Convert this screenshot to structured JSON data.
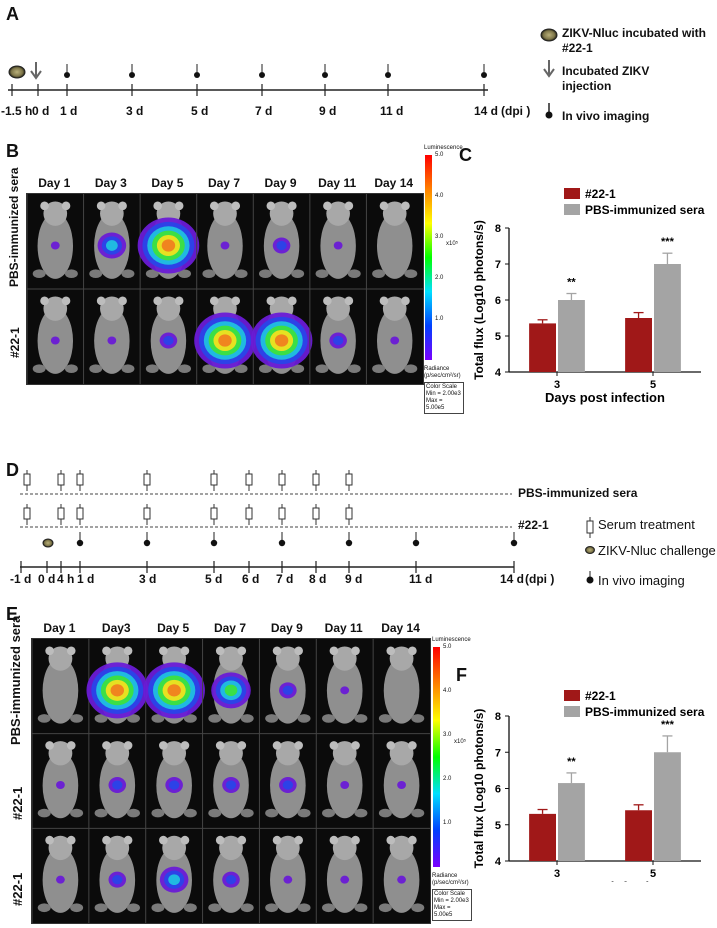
{
  "panels": {
    "A": {
      "letter": "A",
      "ticks": [
        "-1.5 h",
        "0 d",
        "1 d",
        "3 d",
        "5 d",
        "7 d",
        "9 d",
        "11 d",
        "14 d",
        "(dpi )"
      ],
      "legend": {
        "incubated": "ZIKV-Nluc incubated with #22-1",
        "injection": "Incubated  ZIKV injection",
        "imaging": "In vivo imaging"
      }
    },
    "B": {
      "letter": "B",
      "days": [
        "Day 1",
        "Day  3",
        "Day 5",
        "Day 7",
        "Day  9",
        "Day 11",
        "Day 14"
      ],
      "rows": [
        "PBS-immunized sera",
        "#22-1"
      ],
      "scale": {
        "title": "Luminescence",
        "ticks": [
          "5.0",
          "4.0",
          "3.0",
          "2.0",
          "1.0"
        ],
        "exp": "x10⁵",
        "radiance": "Radiance (p/sec/cm²/sr)",
        "color_scale": "Color Scale",
        "min": "Min = 2.00e3",
        "max": "Max = 5.00e5"
      }
    },
    "C": {
      "letter": "C"
    },
    "D": {
      "letter": "D",
      "ticks": [
        "-1 d",
        "0 d",
        "4 h",
        "1 d",
        "3 d",
        "5 d",
        "6 d",
        "7 d",
        "8 d",
        "9 d",
        "11 d",
        "14 d",
        "(dpi )"
      ],
      "rows": [
        "PBS-immunized sera",
        "#22-1"
      ],
      "legend": {
        "serum": "Serum treatment",
        "challenge": "ZIKV-Nluc challenge",
        "imaging": "In vivo imaging"
      }
    },
    "E": {
      "letter": "E",
      "days": [
        "Day 1",
        "Day3",
        "Day 5",
        "Day 7",
        "Day  9",
        "Day 11",
        "Day 14"
      ],
      "rows": [
        "PBS-immunized sera",
        "#22-1",
        "#22-1"
      ],
      "scale": {
        "title": "Luminescence",
        "ticks": [
          "5.0",
          "4.0",
          "3.0",
          "2.0",
          "1.0"
        ],
        "exp": "x10⁵",
        "radiance": "Radiance (p/sec/cm²/sr)",
        "color_scale": "Color Scale",
        "min": "Min = 2.00e3",
        "max": "Max = 5.00e5"
      }
    },
    "F": {
      "letter": "F"
    }
  },
  "chart_data": [
    {
      "panel": "C",
      "type": "bar",
      "categories": [
        "3",
        "5"
      ],
      "series": [
        {
          "name": "#22-1",
          "color": "#a01818",
          "values": [
            5.35,
            5.5
          ],
          "errors": [
            0.1,
            0.15
          ]
        },
        {
          "name": "PBS-immunized sera",
          "color": "#a4a4a4",
          "values": [
            6.0,
            7.0
          ],
          "errors": [
            0.18,
            0.3
          ]
        }
      ],
      "significance": [
        "**",
        "***"
      ],
      "xlabel": "Days post infection",
      "ylabel": "Total flux (Log10 photons/s)",
      "ylim": [
        4,
        8
      ],
      "yticks": [
        "4",
        "5",
        "6",
        "7",
        "8"
      ]
    },
    {
      "panel": "F",
      "type": "bar",
      "categories": [
        "3",
        "5"
      ],
      "series": [
        {
          "name": "#22-1",
          "color": "#a01818",
          "values": [
            5.3,
            5.4
          ],
          "errors": [
            0.12,
            0.15
          ]
        },
        {
          "name": "PBS-immunized sera",
          "color": "#a4a4a4",
          "values": [
            6.15,
            7.0
          ],
          "errors": [
            0.28,
            0.45
          ]
        }
      ],
      "significance": [
        "**",
        "***"
      ],
      "xlabel": "Days post infection",
      "ylabel": "Total flux (Log10 photons/s)",
      "ylim": [
        4,
        8
      ],
      "yticks": [
        "4",
        "5",
        "6",
        "7",
        "8"
      ]
    }
  ]
}
